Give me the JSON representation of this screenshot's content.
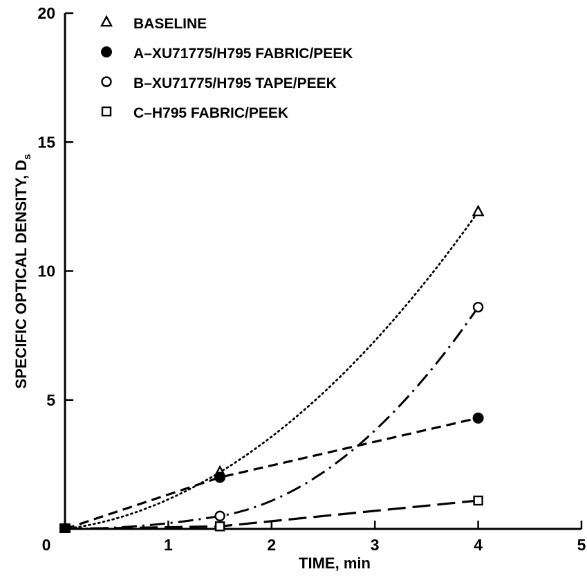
{
  "chart_data": {
    "type": "line",
    "title": "",
    "xlabel": "TIME, min",
    "ylabel_main": "SPECIFIC OPTICAL DENSITY, D",
    "ylabel_subscript": "s",
    "xlim": [
      0,
      5
    ],
    "ylim": [
      0,
      20
    ],
    "x_ticks": [
      "0",
      "1",
      "2",
      "3",
      "4",
      "5"
    ],
    "y_ticks": [
      "5",
      "10",
      "15",
      "20"
    ],
    "grid": false,
    "legend_position": "top-left",
    "series": [
      {
        "name": "BASELINE",
        "marker": "triangle-open",
        "line_style": "dotted",
        "x": [
          0,
          1.5,
          4
        ],
        "y": [
          0,
          2.2,
          12.3
        ]
      },
      {
        "name": "A–XU71775/H795 FABRIC/PEEK",
        "marker": "circle-filled",
        "line_style": "dashed",
        "x": [
          0,
          1.5,
          4
        ],
        "y": [
          0,
          2.0,
          4.3
        ]
      },
      {
        "name": "B–XU71775/H795 TAPE/PEEK",
        "marker": "circle-open",
        "line_style": "dash-dot",
        "x": [
          0,
          1.5,
          4
        ],
        "y": [
          0,
          0.5,
          8.6
        ]
      },
      {
        "name": "C–H795 FABRIC/PEEK",
        "marker": "square-open",
        "line_style": "long-dash",
        "x": [
          0,
          1.5,
          4
        ],
        "y": [
          0,
          0.1,
          1.1
        ]
      }
    ]
  }
}
